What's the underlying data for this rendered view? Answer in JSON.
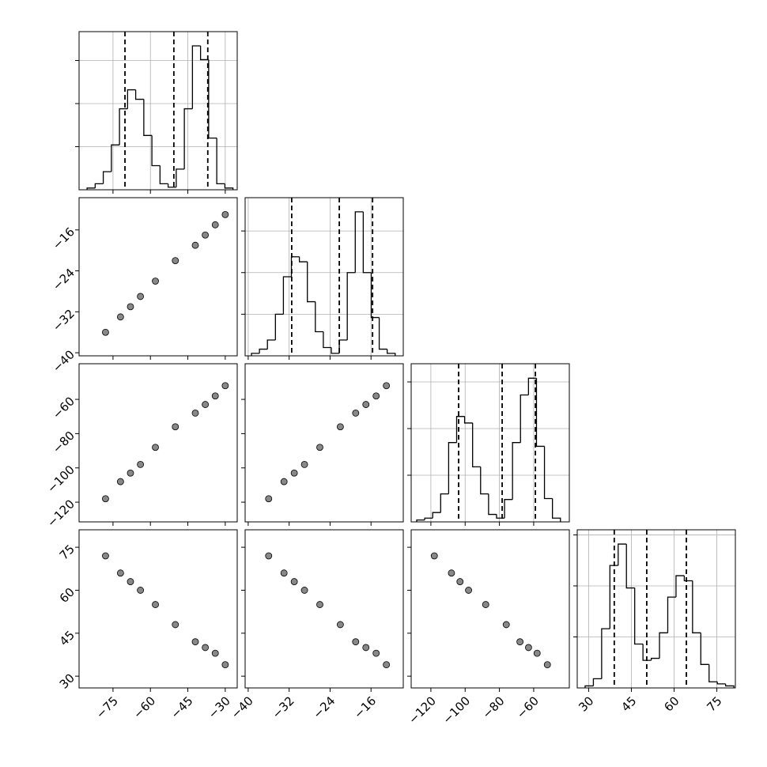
{
  "chart_data": [
    {
      "type": "histogram",
      "color": "#000000",
      "grid": true,
      "bins": [
        -85.4,
        -82.15,
        -78.9,
        -75.65,
        -72.4,
        -69.15,
        -65.9,
        -62.65,
        -59.4,
        -56.15,
        -52.9,
        -49.65,
        -46.4,
        -43.15,
        -39.9,
        -36.65,
        -33.4,
        -30.15,
        -26.9
      ],
      "values": [
        2,
        7,
        21,
        52,
        94,
        116,
        105,
        63,
        28,
        7,
        3,
        24,
        94,
        167,
        151,
        60,
        7,
        2
      ],
      "quantiles": [
        -70.2,
        -50.6,
        -37.0
      ],
      "xlim": [
        -88.6,
        -25.2
      ],
      "xticks": [
        -75,
        -60,
        -45,
        -30
      ],
      "ylim": [
        0,
        183.5
      ],
      "yticks": [
        50,
        100,
        150
      ]
    },
    {
      "type": "scatter",
      "color": "#555555",
      "grid": false,
      "x": [
        -78,
        -72,
        -68,
        -64,
        -58,
        -50,
        -42,
        -38,
        -34,
        -30
      ],
      "y": [
        -36,
        -33,
        -31,
        -29,
        -26,
        -22,
        -19,
        -17,
        -15,
        -13
      ],
      "xlim": [
        -88.6,
        -25.2
      ],
      "xticks": [
        -75,
        -60,
        -45,
        -30
      ],
      "ylim": [
        -40.6,
        -9.7
      ],
      "yticks": [
        {
          "value": -40,
          "label": "−40"
        },
        {
          "value": -32,
          "label": "−32"
        },
        {
          "value": -24,
          "label": "−24"
        },
        {
          "value": -16,
          "label": "−16"
        }
      ]
    },
    {
      "type": "histogram",
      "color": "#000000",
      "grid": true,
      "bins": [
        -39.36,
        -37.8,
        -36.24,
        -34.68,
        -33.12,
        -31.56,
        -30.0,
        -28.44,
        -26.88,
        -25.32,
        -23.76,
        -22.2,
        -20.64,
        -19.08,
        -17.52,
        -15.96,
        -14.4,
        -12.84,
        -11.28
      ],
      "values": [
        3,
        8,
        19,
        50,
        95,
        119,
        113,
        65,
        29,
        10,
        3,
        19,
        100,
        173,
        100,
        46,
        8,
        3
      ],
      "quantiles": [
        -31.5,
        -22.2,
        -15.7
      ],
      "xlim": [
        -40.6,
        -9.7
      ],
      "xticks": [
        -40,
        -32,
        -24,
        -16
      ],
      "ylim": [
        0,
        190
      ],
      "yticks": [
        50,
        100,
        150
      ]
    },
    {
      "type": "scatter",
      "color": "#555555",
      "grid": false,
      "x": [
        -78,
        -72,
        -68,
        -64,
        -58,
        -50,
        -42,
        -38,
        -34,
        -30
      ],
      "y": [
        -118,
        -108,
        -103,
        -98,
        -88,
        -76,
        -68,
        -63,
        -58,
        -52
      ],
      "xlim": [
        -88.6,
        -25.2
      ],
      "xticks": [
        -75,
        -60,
        -45,
        -30
      ],
      "ylim": [
        -131.5,
        -39.2
      ],
      "yticks": [
        {
          "value": -120,
          "label": "−120"
        },
        {
          "value": -100,
          "label": "−100"
        },
        {
          "value": -80,
          "label": "−80"
        },
        {
          "value": -60,
          "label": "−60"
        }
      ]
    },
    {
      "type": "scatter",
      "color": "#555555",
      "grid": false,
      "x": [
        -36,
        -33,
        -31,
        -29,
        -26,
        -22,
        -19,
        -17,
        -15,
        -13
      ],
      "y": [
        -118,
        -108,
        -103,
        -98,
        -88,
        -76,
        -68,
        -63,
        -58,
        -52
      ],
      "xlim": [
        -40.6,
        -9.7
      ],
      "xticks": [
        -40,
        -32,
        -24,
        -16
      ],
      "ylim": [
        -131.5,
        -39.2
      ],
      "yticks": [
        -120,
        -100,
        -80,
        -60
      ]
    },
    {
      "type": "histogram",
      "color": "#000000",
      "grid": true,
      "bins": [
        -128.27,
        -123.61,
        -118.95,
        -114.29,
        -109.63,
        -104.97,
        -100.31,
        -95.65,
        -90.99,
        -86.33,
        -81.67,
        -77.01,
        -72.35,
        -67.69,
        -63.03,
        -58.37,
        -53.71,
        -49.05,
        -44.39
      ],
      "values": [
        2,
        4,
        10,
        30,
        85,
        113,
        106,
        59,
        30,
        8,
        4,
        24,
        85,
        136,
        154,
        81,
        25,
        4
      ],
      "quantiles": [
        -103.8,
        -78.4,
        -59.0
      ],
      "xlim": [
        -131.5,
        -39.2
      ],
      "xticks": [
        -120,
        -100,
        -80,
        -60
      ],
      "ylim": [
        0,
        169.5
      ],
      "yticks": [
        50,
        100,
        150
      ]
    },
    {
      "type": "scatter",
      "color": "#555555",
      "grid": false,
      "x": [
        -78,
        -72,
        -68,
        -64,
        -58,
        -50,
        -42,
        -38,
        -34,
        -30
      ],
      "y": [
        72,
        66,
        63,
        60,
        55,
        48,
        42,
        40,
        38,
        34
      ],
      "xlim": [
        -88.6,
        -25.2
      ],
      "xticks": [
        {
          "value": -75,
          "label": "−75"
        },
        {
          "value": -60,
          "label": "−60"
        },
        {
          "value": -45,
          "label": "−45"
        },
        {
          "value": -30,
          "label": "−30"
        }
      ],
      "ylim": [
        25.9,
        81.1
      ],
      "yticks": [
        30,
        45,
        60,
        75
      ]
    },
    {
      "type": "scatter",
      "color": "#555555",
      "grid": false,
      "x": [
        -36,
        -33,
        -31,
        -29,
        -26,
        -22,
        -19,
        -17,
        -15,
        -13
      ],
      "y": [
        72,
        66,
        63,
        60,
        55,
        48,
        42,
        40,
        38,
        34
      ],
      "xlim": [
        -40.6,
        -9.7
      ],
      "xticks": [
        {
          "value": -40,
          "label": "−40"
        },
        {
          "value": -32,
          "label": "−32"
        },
        {
          "value": -24,
          "label": "−24"
        },
        {
          "value": -16,
          "label": "−16"
        }
      ],
      "ylim": [
        25.9,
        81.1
      ],
      "yticks": [
        30,
        45,
        60,
        75
      ]
    },
    {
      "type": "scatter",
      "color": "#555555",
      "grid": false,
      "x": [
        -118,
        -108,
        -103,
        -98,
        -88,
        -76,
        -68,
        -63,
        -58,
        -52
      ],
      "y": [
        72,
        66,
        63,
        60,
        55,
        48,
        42,
        40,
        38,
        34
      ],
      "xlim": [
        -131.5,
        -39.2
      ],
      "xticks": [
        {
          "value": -120,
          "label": "−120"
        },
        {
          "value": -100,
          "label": "−100"
        },
        {
          "value": -80,
          "label": "−80"
        },
        {
          "value": -60,
          "label": "−60"
        }
      ],
      "ylim": [
        25.9,
        81.1
      ],
      "yticks": [
        30,
        45,
        60,
        75
      ]
    },
    {
      "type": "histogram",
      "color": "#000000",
      "grid": true,
      "bins": [
        28.77,
        31.67,
        34.57,
        37.47,
        40.37,
        43.27,
        46.17,
        49.07,
        51.97,
        54.87,
        57.77,
        60.67,
        63.57,
        66.47,
        69.37,
        72.27,
        75.17,
        78.07,
        80.97
      ],
      "values": [
        2,
        9,
        58,
        120,
        141,
        98,
        43,
        27,
        29,
        54,
        89,
        110,
        105,
        54,
        23,
        6,
        4,
        2
      ],
      "quantiles": [
        39.0,
        50.4,
        64.3
      ],
      "xlim": [
        26,
        81.5
      ],
      "xticks": [
        30,
        45,
        60,
        75
      ],
      "ylim": [
        0,
        155
      ],
      "yticks": [
        50,
        100,
        150
      ]
    }
  ]
}
